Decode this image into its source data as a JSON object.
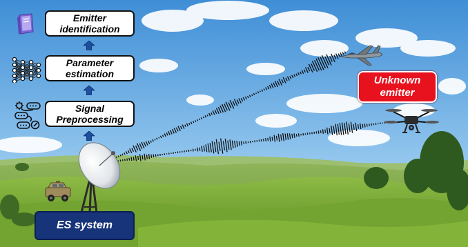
{
  "stages": [
    {
      "id": "emitter-identification",
      "lines": [
        "Emitter",
        "identification"
      ]
    },
    {
      "id": "parameter-estimation",
      "lines": [
        "Parameter",
        "estimation"
      ]
    },
    {
      "id": "signal-preprocessing",
      "lines": [
        "Signal",
        "Preprocessing"
      ]
    }
  ],
  "es_system_label": "ES system",
  "unknown_emitter_lines": [
    "Unknown",
    "emitter"
  ],
  "icons": {
    "stage_icons": [
      "book-icon",
      "neural-network-icon",
      "preprocessing-pipeline-icon"
    ],
    "emitters": [
      "fighter-jet-icon",
      "drone-icon"
    ],
    "receiver": [
      "satellite-dish-icon",
      "military-vehicle-icon"
    ],
    "flow": "up-arrow-icon"
  },
  "colors": {
    "sky_top": "#3f8ed6",
    "sky_bottom": "#b7daf3",
    "hills": "#7fae3c",
    "es_box": "#17347a",
    "unknown_box": "#e8121e",
    "arrow": "#1d4fa0"
  }
}
